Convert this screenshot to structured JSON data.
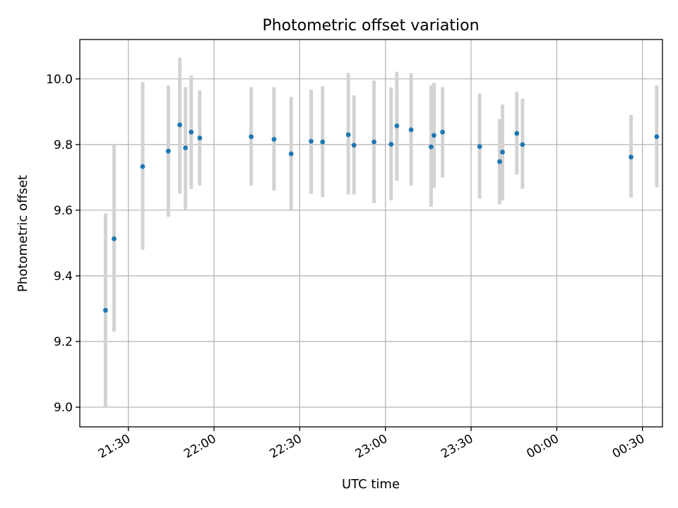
{
  "chart_data": {
    "type": "scatter",
    "title": "Photometric offset variation",
    "xlabel": "UTC time",
    "ylabel": "Photometric offset",
    "x_unit": "UTC",
    "xlim": [
      "21:13",
      "00:37"
    ],
    "ylim": [
      8.94,
      10.12
    ],
    "grid": true,
    "x_ticks": [
      "21:30",
      "22:00",
      "22:30",
      "23:00",
      "23:30",
      "00:00",
      "00:30"
    ],
    "y_ticks": [
      "9.0",
      "9.2",
      "9.4",
      "9.6",
      "9.8",
      "10.0"
    ],
    "y_tick_values": [
      9.0,
      9.2,
      9.4,
      9.6,
      9.8,
      10.0
    ],
    "color": "#1f77b4",
    "errorbar_color": "#d3d3d3",
    "series": [
      {
        "points": [
          {
            "time": "21:22",
            "y": 9.295,
            "low": 9.0,
            "high": 9.59
          },
          {
            "time": "21:25",
            "y": 9.513,
            "low": 9.23,
            "high": 9.8
          },
          {
            "time": "21:35",
            "y": 9.733,
            "low": 9.48,
            "high": 9.99
          },
          {
            "time": "21:44",
            "y": 9.78,
            "low": 9.58,
            "high": 9.98
          },
          {
            "time": "21:48",
            "y": 9.86,
            "low": 9.65,
            "high": 10.065
          },
          {
            "time": "21:50",
            "y": 9.79,
            "low": 9.6,
            "high": 9.975
          },
          {
            "time": "21:52",
            "y": 9.838,
            "low": 9.665,
            "high": 10.01
          },
          {
            "time": "21:55",
            "y": 9.82,
            "low": 9.675,
            "high": 9.965
          },
          {
            "time": "22:13",
            "y": 9.824,
            "low": 9.675,
            "high": 9.975
          },
          {
            "time": "22:21",
            "y": 9.816,
            "low": 9.66,
            "high": 9.975
          },
          {
            "time": "22:27",
            "y": 9.772,
            "low": 9.6,
            "high": 9.945
          },
          {
            "time": "22:34",
            "y": 9.81,
            "low": 9.65,
            "high": 9.968
          },
          {
            "time": "22:38",
            "y": 9.808,
            "low": 9.64,
            "high": 9.978
          },
          {
            "time": "22:47",
            "y": 9.83,
            "low": 9.648,
            "high": 10.018
          },
          {
            "time": "22:49",
            "y": 9.798,
            "low": 9.648,
            "high": 9.95
          },
          {
            "time": "22:56",
            "y": 9.808,
            "low": 9.622,
            "high": 9.995
          },
          {
            "time": "23:02",
            "y": 9.801,
            "low": 9.63,
            "high": 9.974
          },
          {
            "time": "23:04",
            "y": 9.857,
            "low": 9.69,
            "high": 10.022
          },
          {
            "time": "23:09",
            "y": 9.845,
            "low": 9.675,
            "high": 10.018
          },
          {
            "time": "23:16",
            "y": 9.793,
            "low": 9.61,
            "high": 9.98
          },
          {
            "time": "23:17",
            "y": 9.828,
            "low": 9.668,
            "high": 9.988
          },
          {
            "time": "23:20",
            "y": 9.838,
            "low": 9.7,
            "high": 9.975
          },
          {
            "time": "23:33",
            "y": 9.794,
            "low": 9.635,
            "high": 9.955
          },
          {
            "time": "23:40",
            "y": 9.748,
            "low": 9.618,
            "high": 9.878
          },
          {
            "time": "23:41",
            "y": 9.777,
            "low": 9.63,
            "high": 9.922
          },
          {
            "time": "23:46",
            "y": 9.834,
            "low": 9.708,
            "high": 9.96
          },
          {
            "time": "23:48",
            "y": 9.8,
            "low": 9.665,
            "high": 9.94
          },
          {
            "time": "00:26",
            "y": 9.762,
            "low": 9.638,
            "high": 9.89
          },
          {
            "time": "00:35",
            "y": 9.824,
            "low": 9.67,
            "high": 9.98
          }
        ]
      }
    ]
  }
}
